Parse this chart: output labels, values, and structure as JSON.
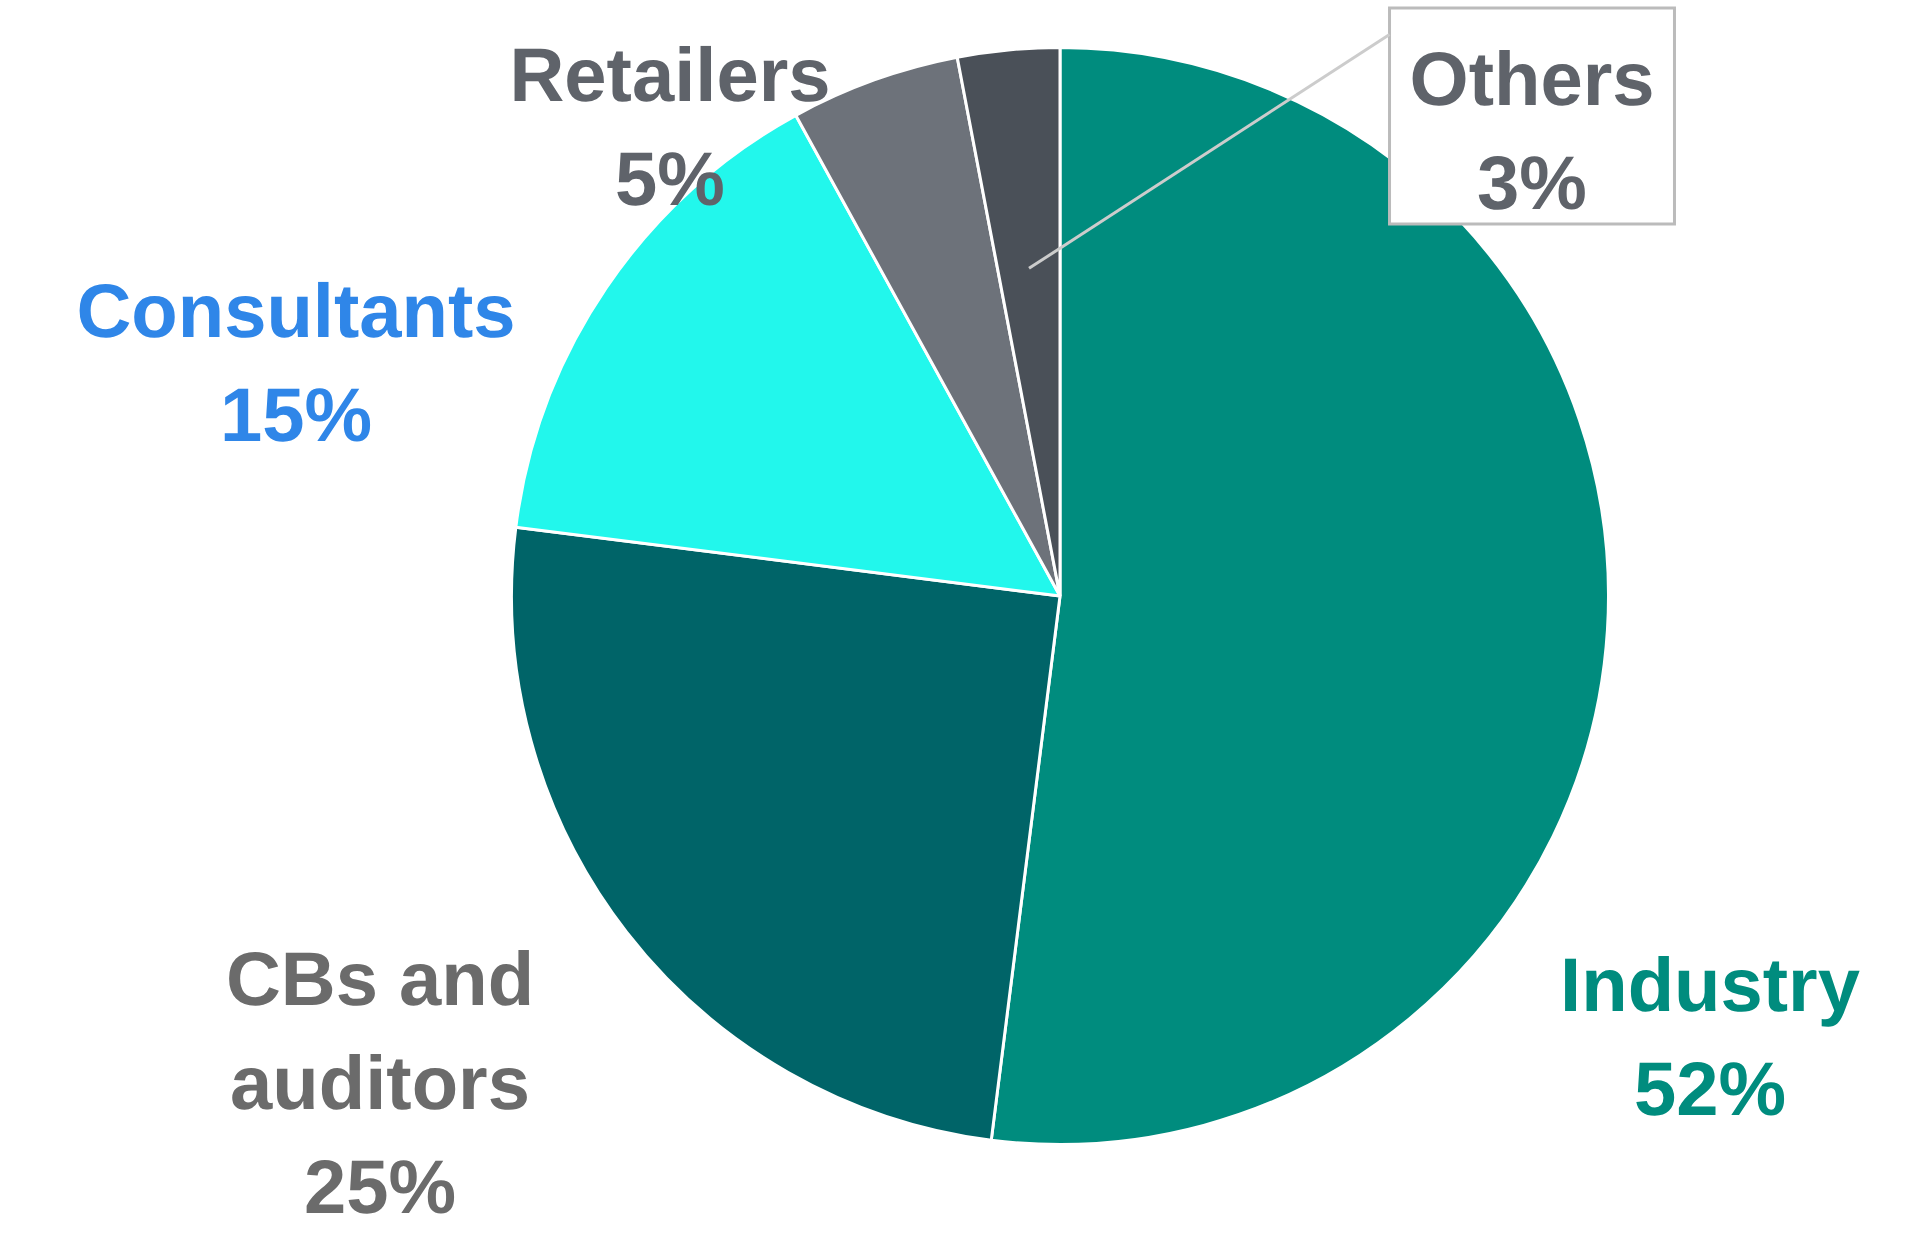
{
  "chart_data": {
    "type": "pie",
    "categories": [
      "Industry",
      "CBs and auditors",
      "Consultants",
      "Retailers",
      "Others"
    ],
    "values": [
      52,
      25,
      15,
      5,
      3
    ],
    "value_labels": [
      "52%",
      "25%",
      "15%",
      "5%",
      "3%"
    ],
    "colors": [
      "#008c7e",
      "#006468",
      "#22f7ec",
      "#6d727a",
      "#4a5058"
    ]
  }
}
